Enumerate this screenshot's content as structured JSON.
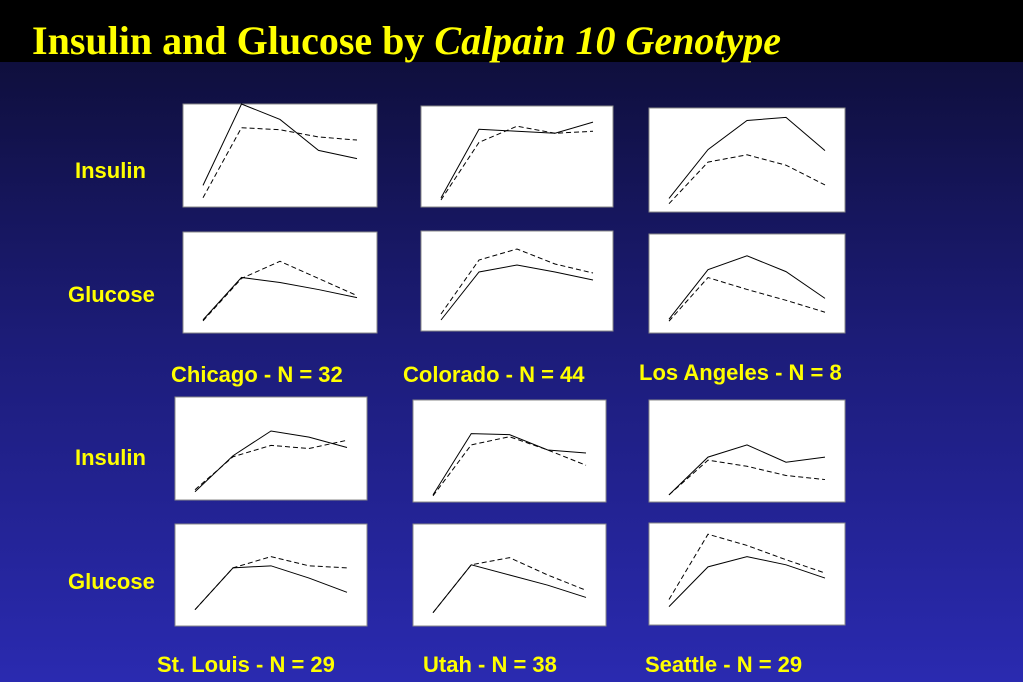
{
  "slide": {
    "title": "Insulin and Glucose by ",
    "title_italic": "Calpain 10 Genotype",
    "row_labels": [
      "Insulin",
      "Glucose",
      "Insulin",
      "Glucose"
    ],
    "captions": [
      "Chicago - N = 32",
      "Colorado - N = 44",
      "Los Angeles - N = 8",
      "St. Louis - N = 29",
      "Utah - N = 38",
      "Seattle - N = 29"
    ]
  },
  "chart_data": [
    {
      "type": "line",
      "ylim": [
        0,
        100
      ],
      "series": [
        {
          "color": "#000000",
          "dash": false,
          "values": [
            21,
            100,
            85,
            55,
            47
          ]
        },
        {
          "color": "#000000",
          "dash": true,
          "values": [
            9,
            77,
            75,
            68,
            65
          ]
        }
      ]
    },
    {
      "type": "line",
      "ylim": [
        0,
        100
      ],
      "series": [
        {
          "color": "#000000",
          "dash": false,
          "values": [
            9,
            77,
            75,
            73,
            84
          ]
        },
        {
          "color": "#000000",
          "dash": true,
          "values": [
            7,
            64,
            80,
            73,
            75
          ]
        }
      ]
    },
    {
      "type": "line",
      "ylim": [
        0,
        100
      ],
      "series": [
        {
          "color": "#000000",
          "dash": false,
          "values": [
            13,
            60,
            88,
            91,
            59
          ]
        },
        {
          "color": "#000000",
          "dash": true,
          "values": [
            8,
            48,
            55,
            45,
            26
          ]
        }
      ]
    },
    {
      "type": "line",
      "ylim": [
        0,
        100
      ],
      "series": [
        {
          "color": "#000000",
          "dash": false,
          "values": [
            13,
            55,
            50,
            43,
            35
          ]
        },
        {
          "color": "#000000",
          "dash": true,
          "values": [
            12,
            54,
            71,
            54,
            37
          ]
        }
      ]
    },
    {
      "type": "line",
      "ylim": [
        0,
        100
      ],
      "series": [
        {
          "color": "#000000",
          "dash": false,
          "values": [
            11,
            59,
            66,
            59,
            51
          ]
        },
        {
          "color": "#000000",
          "dash": true,
          "values": [
            17,
            71,
            82,
            67,
            58
          ]
        }
      ]
    },
    {
      "type": "line",
      "ylim": [
        0,
        100
      ],
      "series": [
        {
          "color": "#000000",
          "dash": false,
          "values": [
            14,
            64,
            78,
            62,
            35
          ]
        },
        {
          "color": "#000000",
          "dash": true,
          "values": [
            12,
            56,
            44,
            33,
            21
          ]
        }
      ]
    },
    {
      "type": "line",
      "ylim": [
        0,
        100
      ],
      "series": [
        {
          "color": "#000000",
          "dash": false,
          "values": [
            8,
            43,
            67,
            61,
            51
          ]
        },
        {
          "color": "#000000",
          "dash": true,
          "values": [
            10,
            42,
            53,
            50,
            58
          ]
        }
      ]
    },
    {
      "type": "line",
      "ylim": [
        0,
        100
      ],
      "series": [
        {
          "color": "#000000",
          "dash": false,
          "values": [
            7,
            67,
            66,
            51,
            48
          ]
        },
        {
          "color": "#000000",
          "dash": true,
          "values": [
            6,
            56,
            64,
            51,
            36
          ]
        }
      ]
    },
    {
      "type": "line",
      "ylim": [
        0,
        100
      ],
      "series": [
        {
          "color": "#000000",
          "dash": false,
          "values": [
            7,
            44,
            56,
            39,
            44
          ]
        },
        {
          "color": "#000000",
          "dash": true,
          "values": [
            7,
            41,
            35,
            26,
            22
          ]
        }
      ]
    },
    {
      "type": "line",
      "ylim": [
        0,
        100
      ],
      "series": [
        {
          "color": "#000000",
          "dash": false,
          "values": [
            16,
            57,
            59,
            47,
            33
          ]
        },
        {
          "color": "#000000",
          "dash": true,
          "values": [
            16,
            57,
            68,
            59,
            57
          ]
        }
      ]
    },
    {
      "type": "line",
      "ylim": [
        0,
        100
      ],
      "series": [
        {
          "color": "#000000",
          "dash": false,
          "values": [
            13,
            60,
            50,
            40,
            28
          ]
        },
        {
          "color": "#000000",
          "dash": true,
          "values": [
            13,
            60,
            67,
            50,
            35
          ]
        }
      ]
    },
    {
      "type": "line",
      "ylim": [
        0,
        100
      ],
      "series": [
        {
          "color": "#000000",
          "dash": false,
          "values": [
            18,
            57,
            67,
            59,
            46
          ]
        },
        {
          "color": "#000000",
          "dash": true,
          "values": [
            25,
            89,
            78,
            64,
            51
          ]
        }
      ]
    }
  ]
}
